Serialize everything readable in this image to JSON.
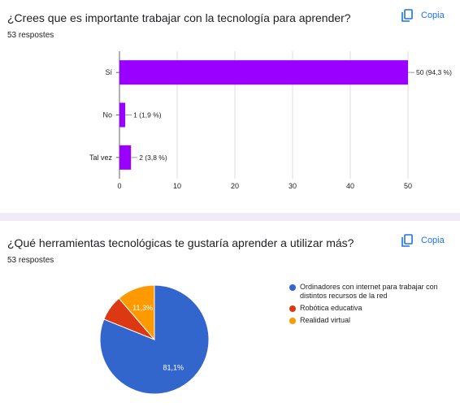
{
  "q1": {
    "title": "¿Crees que es importante trabajar con la tecnología para aprender?",
    "responses": "53 respostes",
    "copy_label": "Copia"
  },
  "q2": {
    "title": "¿Qué herramientas tecnológicas te gustaría aprender a utilizar más?",
    "responses": "53 respostes",
    "copy_label": "Copia"
  },
  "colors": {
    "accent": "#1a73e8",
    "bar": "#9900ff",
    "divider": "#f0ebf8"
  },
  "icons": {
    "copy": "copy-icon"
  },
  "chart_data": [
    {
      "type": "bar",
      "orientation": "horizontal",
      "categories": [
        "Sí",
        "No",
        "Tal vez"
      ],
      "values": [
        50,
        1,
        2
      ],
      "value_labels": [
        "50 (94,3 %)",
        "1 (1,9 %)",
        "2 (3,8 %)"
      ],
      "xlim": [
        0,
        50
      ],
      "xticks": [
        0,
        10,
        20,
        30,
        40,
        50
      ],
      "grid": true,
      "color": "#9900ff"
    },
    {
      "type": "pie",
      "slices": [
        {
          "label": "Ordinadores con internet para trabajar con distintos recursos de la red",
          "value": 81.1,
          "display": "81,1%",
          "color": "#3366cc"
        },
        {
          "label": "Robótica educativa",
          "value": 7.6,
          "display": "",
          "color": "#dc3912"
        },
        {
          "label": "Realidad virtual",
          "value": 11.3,
          "display": "11,3%",
          "color": "#ff9900"
        }
      ],
      "legend": "right"
    }
  ]
}
